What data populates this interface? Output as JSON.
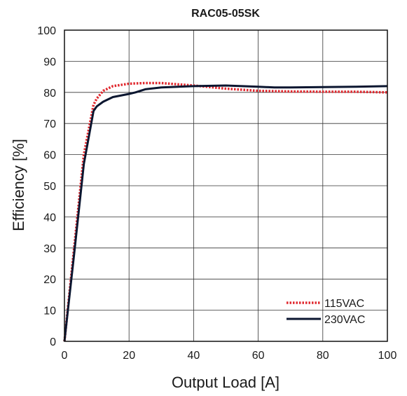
{
  "chart_data": {
    "type": "line",
    "title": "RAC05-05SK",
    "xlabel": "Output Load [A]",
    "ylabel": "Efficiency [%]",
    "xlim": [
      0,
      100
    ],
    "ylim": [
      0,
      100
    ],
    "xticks": [
      0,
      20,
      40,
      60,
      80,
      100
    ],
    "yticks": [
      0,
      10,
      20,
      30,
      40,
      50,
      60,
      70,
      80,
      90,
      100
    ],
    "grid": true,
    "legend_position": "bottom-right",
    "series": [
      {
        "name": "115VAC",
        "color": "#e0282e",
        "style": "dotted",
        "x": [
          0,
          3,
          6,
          9,
          10,
          12,
          15,
          20,
          25,
          30,
          40,
          50,
          60,
          70,
          80,
          90,
          100
        ],
        "y": [
          0,
          30,
          60,
          76,
          78,
          80.5,
          82,
          82.8,
          83,
          83,
          82.2,
          81.2,
          80.5,
          80.3,
          80.2,
          80.2,
          80
        ]
      },
      {
        "name": "230VAC",
        "color": "#0b1630",
        "style": "solid",
        "x": [
          0,
          3,
          6,
          9,
          10,
          12,
          15,
          20,
          22,
          25,
          30,
          40,
          50,
          60,
          65,
          70,
          80,
          90,
          100
        ],
        "y": [
          0,
          28,
          57,
          74,
          75.5,
          77,
          78.5,
          79.5,
          80,
          81,
          81.6,
          82,
          82.2,
          81.8,
          81.6,
          81.6,
          81.7,
          81.8,
          82
        ]
      }
    ]
  }
}
